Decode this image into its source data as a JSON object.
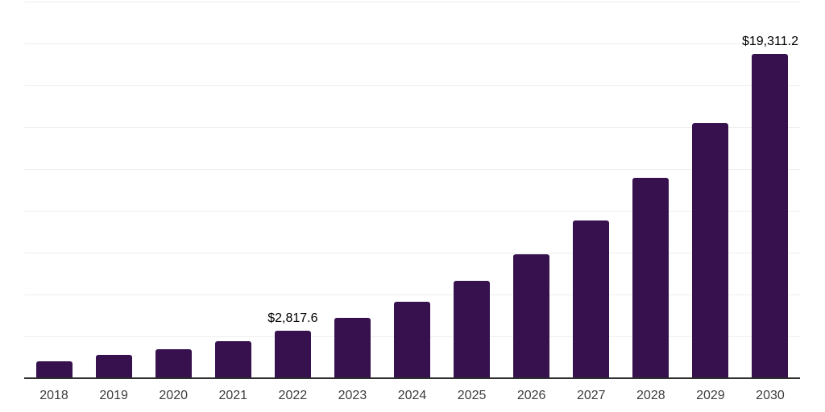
{
  "chart_data": {
    "type": "bar",
    "title": "",
    "xlabel": "",
    "ylabel": "",
    "categories": [
      "2018",
      "2019",
      "2020",
      "2021",
      "2022",
      "2023",
      "2024",
      "2025",
      "2026",
      "2027",
      "2028",
      "2029",
      "2030"
    ],
    "values": [
      1030,
      1390,
      1720,
      2200,
      2817.6,
      3580,
      4560,
      5800,
      7380,
      9390,
      11940,
      15180,
      19311.2
    ],
    "value_labels": [
      "",
      "",
      "",
      "",
      "$2,817.6",
      "",
      "",
      "",
      "",
      "",
      "",
      "",
      "$19,311.2"
    ],
    "labeled_points": [
      {
        "category": "2022",
        "label": "$2,817.6",
        "value": 2817.6
      },
      {
        "category": "2030",
        "label": "$19,311.2",
        "value": 19311.2
      }
    ],
    "ylim": [
      0,
      22400
    ],
    "y_axis_tick_labels": "none",
    "legend": "none",
    "grid": "horizontal",
    "gridline_divisions": 9,
    "colors": {
      "bar": "#36114e",
      "gridline": "#efefef",
      "axis_line": "#2e2e2e",
      "x_label_text": "#3d3d3d",
      "data_label_text": "#000000",
      "background": "#ffffff"
    }
  }
}
